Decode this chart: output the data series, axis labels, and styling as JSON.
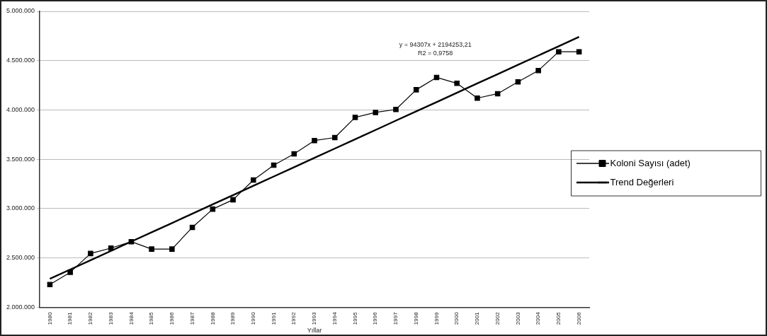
{
  "chart_data": {
    "type": "line",
    "xlabel": "Yıllar",
    "categories": [
      "1980",
      "1981",
      "1982",
      "1983",
      "1984",
      "1985",
      "1986",
      "1987",
      "1988",
      "1989",
      "1990",
      "1991",
      "1992",
      "1993",
      "1994",
      "1995",
      "1996",
      "1997",
      "1998",
      "1999",
      "2000",
      "2001",
      "2002",
      "2003",
      "2004",
      "2005",
      "2006"
    ],
    "series": [
      {
        "name": "Koloni Sayısı (adet)",
        "color": "#000000",
        "marker": "square",
        "values": [
          2230000,
          2355000,
          2545000,
          2600000,
          2665000,
          2590000,
          2590000,
          2810000,
          2995000,
          3090000,
          3290000,
          3440000,
          3555000,
          3690000,
          3720000,
          3925000,
          3975000,
          4005000,
          4205000,
          4330000,
          4270000,
          4120000,
          4165000,
          4285000,
          4400000,
          4590000,
          4590000
        ]
      },
      {
        "name": "Trend Değerleri",
        "color": "#000000",
        "marker": "none",
        "values": [
          2289000,
          2383000,
          2477000,
          2571000,
          2666000,
          2760000,
          2854000,
          2949000,
          3043000,
          3137000,
          3232000,
          3326000,
          3420000,
          3515000,
          3609000,
          3703000,
          3797000,
          3892000,
          3986000,
          4080000,
          4175000,
          4269000,
          4363000,
          4458000,
          4552000,
          4646000,
          4741000
        ]
      }
    ],
    "ylim": [
      2000000,
      5000000
    ],
    "yticks": [
      {
        "value": 2000000,
        "label": "2.000.000"
      },
      {
        "value": 2500000,
        "label": "2.500.000"
      },
      {
        "value": 3000000,
        "label": "3.000.000"
      },
      {
        "value": 3500000,
        "label": "3.500.000"
      },
      {
        "value": 4000000,
        "label": "4.000.000"
      },
      {
        "value": 4500000,
        "label": "4.500.000"
      },
      {
        "value": 5000000,
        "label": "5.000.000"
      }
    ],
    "grid": "y",
    "legend": "right",
    "annotations": [
      "y = 94307x + 2194253,21",
      "R2 = 0,9758"
    ]
  }
}
